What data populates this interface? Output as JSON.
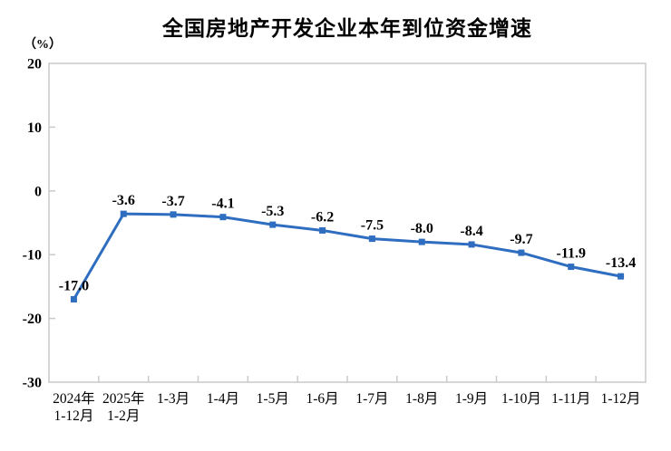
{
  "chart_data": {
    "type": "line",
    "title": "全国房地产开发企业本年到位资金增速",
    "ylabel": "（%）",
    "xlabel": "",
    "categories": [
      "2024年\n1-12月",
      "2025年\n1-2月",
      "1-3月",
      "1-4月",
      "1-5月",
      "1-6月",
      "1-7月",
      "1-8月",
      "1-9月",
      "1-10月",
      "1-11月",
      "1-12月"
    ],
    "values": [
      -17.0,
      -3.6,
      -3.7,
      -4.1,
      -5.3,
      -6.2,
      -7.5,
      -8.0,
      -8.4,
      -9.7,
      -11.9,
      -13.4
    ],
    "ylim": [
      -30,
      20
    ],
    "ytick_interval": 10,
    "ytick_labels": [
      "20",
      "10",
      "0",
      "-10",
      "-20",
      "-30"
    ],
    "grid": false,
    "legend_position": "none",
    "marker": "square",
    "line_color": "#2E6DBF",
    "axis_color": "#C9C9C9",
    "text_color": "#000000"
  }
}
